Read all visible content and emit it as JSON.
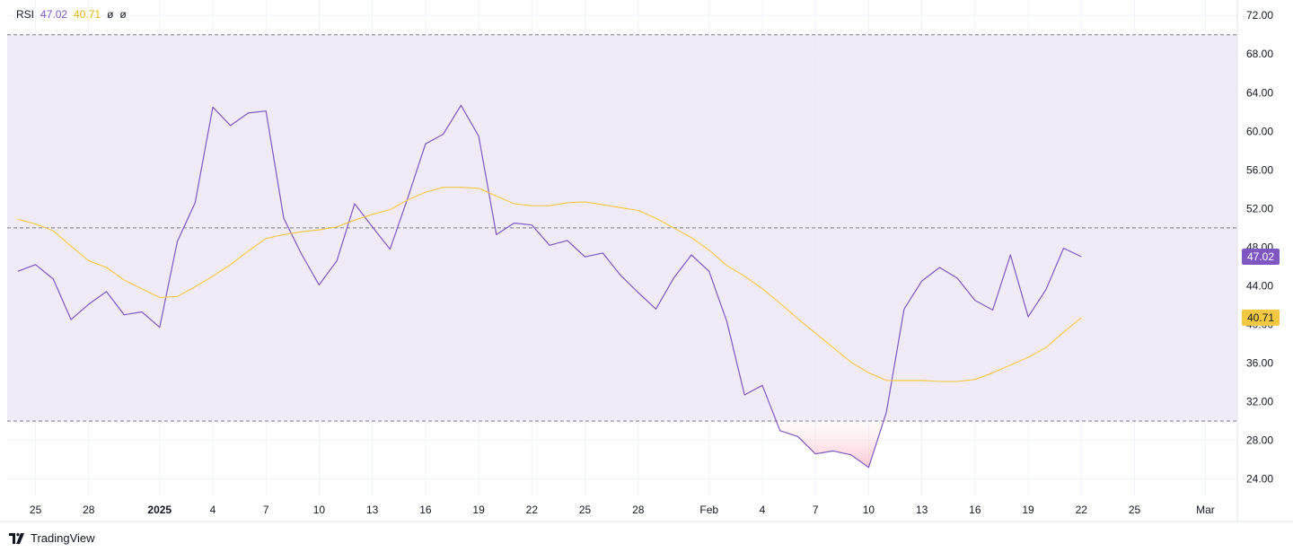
{
  "legend": {
    "title": "RSI",
    "rsi_value": "47.02",
    "ma_value": "40.71",
    "null1": "ø",
    "null2": "ø"
  },
  "footer": {
    "brand": "TradingView"
  },
  "colors": {
    "rsi": "#7e57c2",
    "ma": "#f5c842",
    "band": "#ede7f6",
    "oversold_fill": "#fde8ec",
    "grid": "#f0f3fa",
    "ref_line": "#787b86"
  },
  "chart_data": {
    "type": "line",
    "x_tick_labels": [
      {
        "i": 0,
        "label": "25"
      },
      {
        "i": 3,
        "label": "28"
      },
      {
        "i": 7,
        "label": "2025",
        "bold": true
      },
      {
        "i": 10,
        "label": "4"
      },
      {
        "i": 13,
        "label": "7"
      },
      {
        "i": 16,
        "label": "10"
      },
      {
        "i": 19,
        "label": "13"
      },
      {
        "i": 22,
        "label": "16"
      },
      {
        "i": 25,
        "label": "19"
      },
      {
        "i": 28,
        "label": "22"
      },
      {
        "i": 31,
        "label": "25"
      },
      {
        "i": 34,
        "label": "28"
      },
      {
        "i": 38,
        "label": "Feb"
      },
      {
        "i": 41,
        "label": "4"
      },
      {
        "i": 44,
        "label": "7"
      },
      {
        "i": 47,
        "label": "10"
      },
      {
        "i": 50,
        "label": "13"
      },
      {
        "i": 53,
        "label": "16"
      },
      {
        "i": 56,
        "label": "19"
      },
      {
        "i": 59,
        "label": "22"
      },
      {
        "i": 62,
        "label": "25"
      },
      {
        "i": 66,
        "label": "Mar"
      }
    ],
    "y_ticks": [
      "24.00",
      "28.00",
      "32.00",
      "36.00",
      "40.00",
      "44.00",
      "48.00",
      "52.00",
      "56.00",
      "60.00",
      "64.00",
      "68.00",
      "72.00"
    ],
    "ylim": [
      22.2,
      73.6
    ],
    "x_index_range": [
      -1.6,
      67.8
    ],
    "reference_levels": [
      70,
      50,
      30
    ],
    "band": [
      30,
      70
    ],
    "series": [
      {
        "key": "rsi",
        "start_index": -1,
        "values": [
          45.5,
          46.2,
          44.7,
          40.5,
          42.1,
          43.4,
          41.0,
          41.3,
          39.7,
          48.6,
          52.6,
          62.5,
          60.6,
          61.9,
          62.1,
          51.0,
          47.3,
          44.1,
          46.6,
          52.5,
          50.1,
          47.8,
          53.1,
          58.7,
          59.7,
          62.7,
          59.5,
          49.3,
          50.5,
          50.3,
          48.2,
          48.7,
          47.0,
          47.4,
          45.1,
          43.3,
          41.6,
          44.8,
          47.2,
          45.5,
          40.3,
          32.7,
          33.7,
          29.0,
          28.4,
          26.6,
          26.9,
          26.5,
          25.2,
          30.9,
          41.6,
          44.5,
          45.9,
          44.8,
          42.5,
          41.5,
          47.2,
          40.8,
          43.6,
          47.9,
          47.02
        ]
      },
      {
        "key": "ma",
        "start_index": -1,
        "values": [
          50.9,
          50.4,
          49.7,
          48.1,
          46.6,
          45.9,
          44.6,
          43.7,
          42.8,
          42.9,
          43.9,
          45.0,
          46.2,
          47.6,
          48.9,
          49.3,
          49.6,
          49.8,
          50.1,
          50.8,
          51.4,
          51.9,
          52.9,
          53.7,
          54.2,
          54.2,
          54.1,
          53.3,
          52.5,
          52.3,
          52.3,
          52.6,
          52.7,
          52.4,
          52.1,
          51.8,
          51.0,
          50.0,
          49.0,
          47.7,
          46.1,
          45.0,
          43.7,
          42.2,
          40.6,
          39.1,
          37.6,
          36.1,
          35.0,
          34.2,
          34.2,
          34.2,
          34.1,
          34.1,
          34.3,
          35.0,
          35.8,
          36.6,
          37.6,
          39.2,
          40.71
        ]
      }
    ]
  }
}
